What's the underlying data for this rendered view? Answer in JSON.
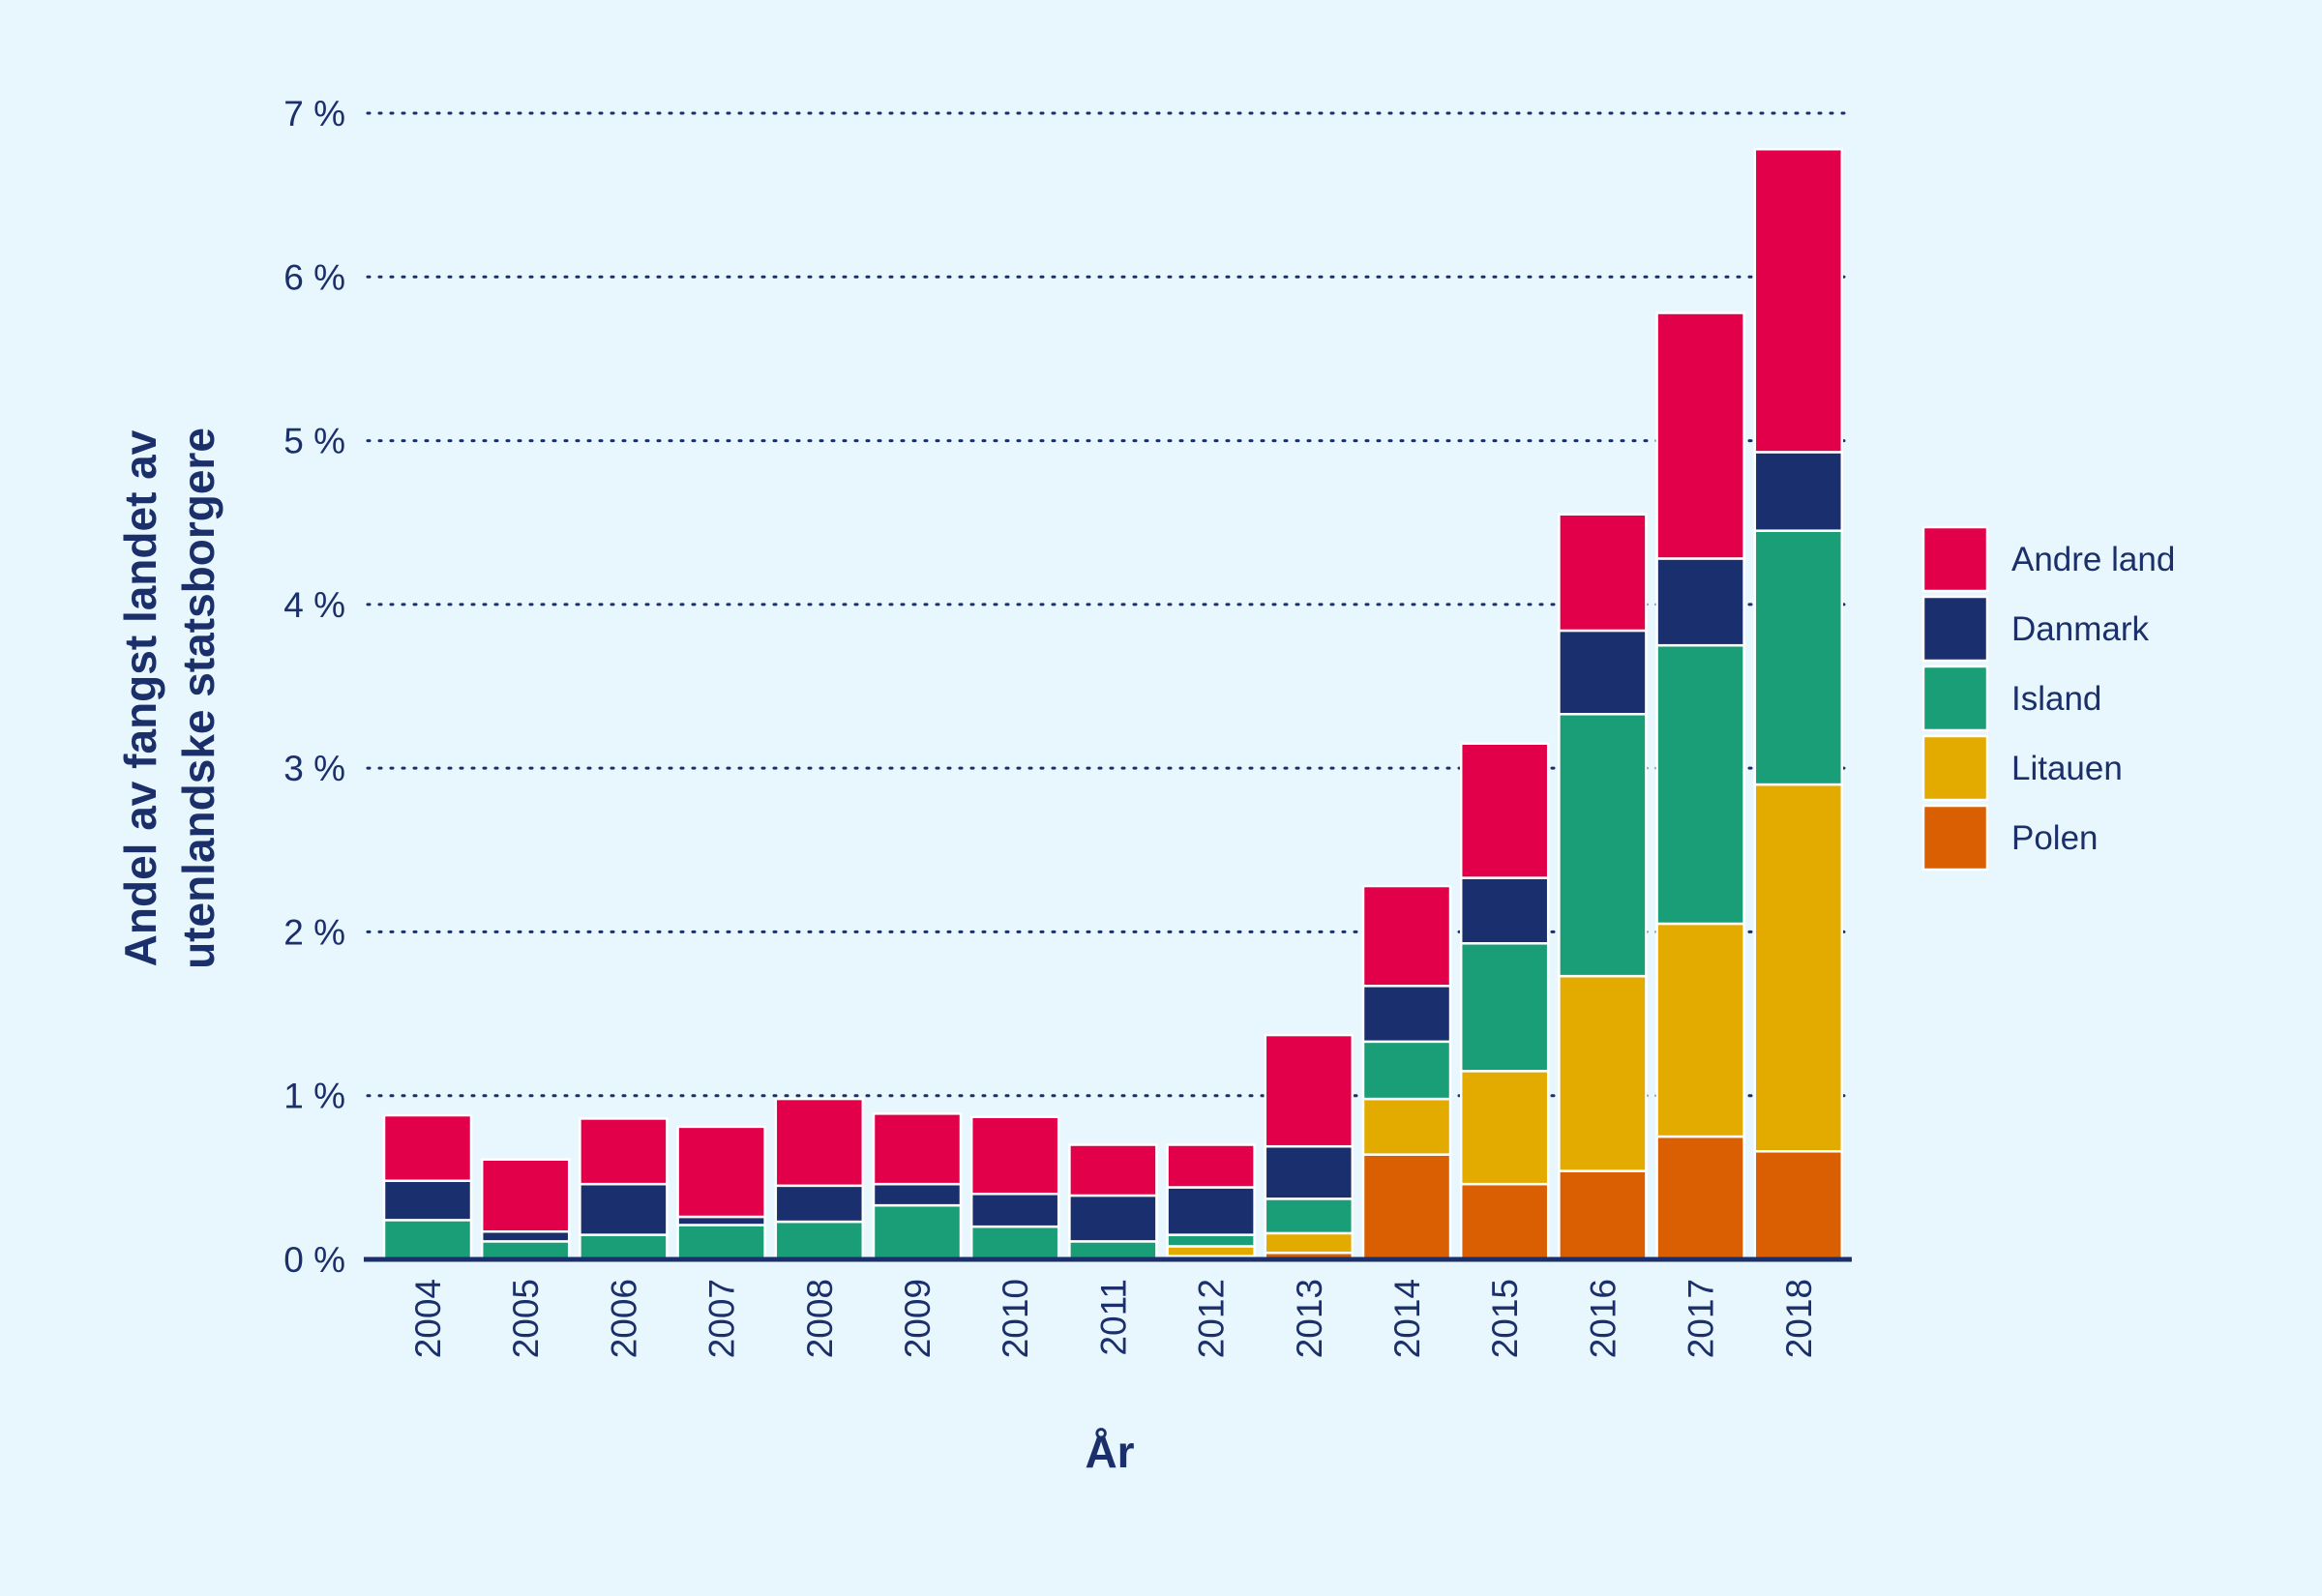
{
  "chart_data": {
    "type": "bar",
    "stacked": true,
    "title": "",
    "xlabel": "År",
    "ylabel_lines": [
      "Andel av fangst landet av",
      "utenlandske statsborgere"
    ],
    "ylim": [
      0,
      7
    ],
    "yticks": [
      0,
      1,
      2,
      3,
      4,
      5,
      6,
      7
    ],
    "ytick_labels": [
      "0 %",
      "1 %",
      "2 %",
      "3 %",
      "4 %",
      "5 %",
      "6 %",
      "7 %"
    ],
    "grid": "horizontal-dotted",
    "legend_position": "right",
    "categories": [
      "2004",
      "2005",
      "2006",
      "2007",
      "2008",
      "2009",
      "2010",
      "2011",
      "2012",
      "2013",
      "2014",
      "2015",
      "2016",
      "2017",
      "2018"
    ],
    "series": [
      {
        "name": "Polen",
        "color": "#d95f02",
        "values": [
          0,
          0,
          0,
          0,
          0,
          0,
          0,
          0,
          0.02,
          0.04,
          0.64,
          0.46,
          0.54,
          0.75,
          0.66
        ]
      },
      {
        "name": "Litauen",
        "color": "#e3aa00",
        "values": [
          0,
          0,
          0,
          0,
          0,
          0,
          0,
          0,
          0.06,
          0.12,
          0.34,
          0.69,
          1.19,
          1.3,
          2.24
        ]
      },
      {
        "name": "Island",
        "color": "#1a9e77",
        "values": [
          0.24,
          0.11,
          0.15,
          0.21,
          0.23,
          0.33,
          0.2,
          0.11,
          0.07,
          0.21,
          0.35,
          0.78,
          1.6,
          1.7,
          1.55
        ]
      },
      {
        "name": "Danmark",
        "color": "#1a2f6e",
        "values": [
          0.24,
          0.06,
          0.31,
          0.05,
          0.22,
          0.13,
          0.2,
          0.28,
          0.29,
          0.32,
          0.34,
          0.4,
          0.51,
          0.53,
          0.48
        ]
      },
      {
        "name": "Andre land",
        "color": "#e2004a",
        "values": [
          0.4,
          0.44,
          0.4,
          0.55,
          0.53,
          0.43,
          0.47,
          0.31,
          0.26,
          0.68,
          0.61,
          0.82,
          0.71,
          1.5,
          1.85
        ]
      }
    ],
    "legend_order": [
      "Andre land",
      "Danmark",
      "Island",
      "Litauen",
      "Polen"
    ]
  }
}
